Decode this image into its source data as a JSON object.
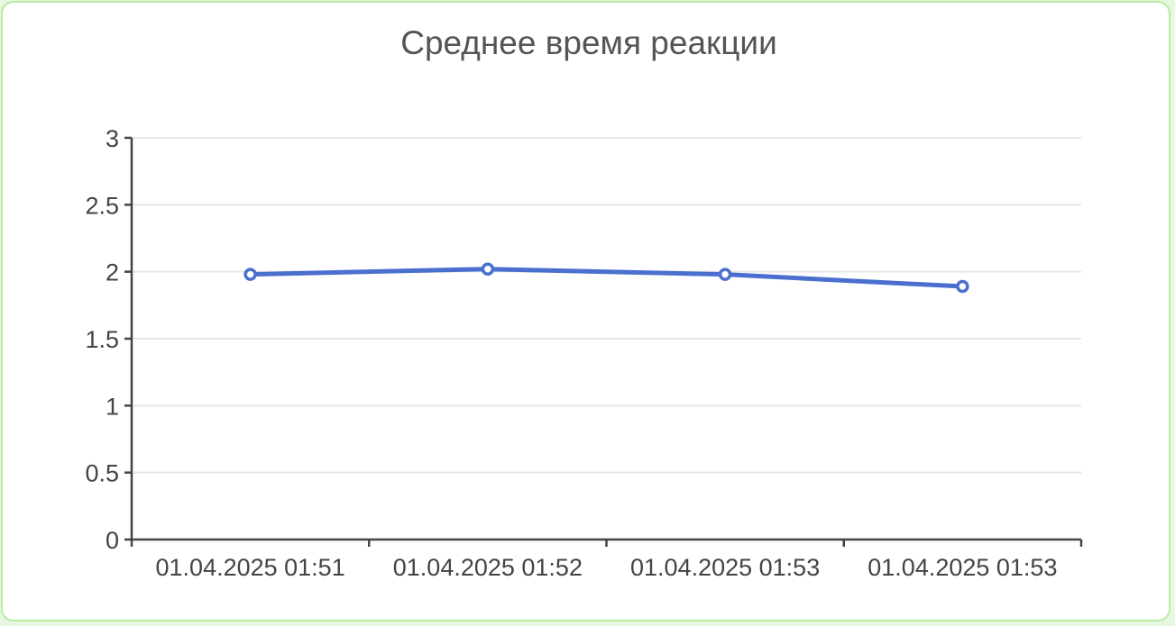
{
  "chart_data": {
    "type": "line",
    "title": "Среднее время реакции",
    "xlabel": "",
    "ylabel": "",
    "categories": [
      "01.04.2025 01:51",
      "01.04.2025 01:52",
      "01.04.2025 01:53",
      "01.04.2025 01:53"
    ],
    "series": [
      {
        "values": [
          1.98,
          2.02,
          1.98,
          1.89
        ]
      }
    ],
    "ylim": [
      0,
      3
    ],
    "yticks": [
      "0",
      "0.5",
      "1",
      "1.5",
      "2",
      "2.5",
      "3"
    ],
    "grid": true,
    "legend": "none",
    "colors": {
      "series": "#4a6fcf",
      "grid": "#e6e6e6",
      "axis": "#444444",
      "border": "#b6eda0"
    }
  }
}
